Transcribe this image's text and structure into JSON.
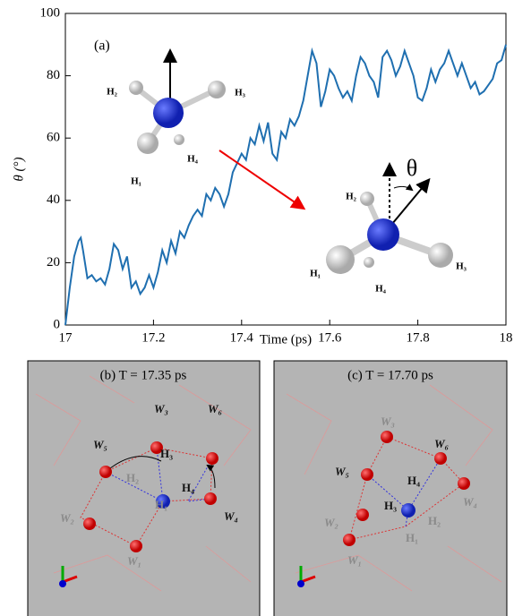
{
  "chart_data": {
    "type": "line",
    "x_label": "Time (ps)",
    "y_label": "θ (°)",
    "annotation": "(a)",
    "xlim": [
      17,
      18
    ],
    "ylim": [
      0,
      100
    ],
    "xticks": [
      17,
      17.2,
      17.4,
      17.6,
      17.8,
      18
    ],
    "yticks": [
      0,
      20,
      40,
      60,
      80,
      100
    ],
    "series": [
      {
        "name": "θ",
        "color": "#1f6fb0",
        "x": [
          17,
          17.01,
          17.02,
          17.03,
          17.035,
          17.04,
          17.05,
          17.06,
          17.07,
          17.08,
          17.09,
          17.1,
          17.11,
          17.12,
          17.13,
          17.14,
          17.15,
          17.16,
          17.17,
          17.18,
          17.19,
          17.2,
          17.21,
          17.22,
          17.23,
          17.24,
          17.25,
          17.26,
          17.27,
          17.28,
          17.29,
          17.3,
          17.31,
          17.32,
          17.33,
          17.34,
          17.35,
          17.36,
          17.37,
          17.38,
          17.39,
          17.4,
          17.41,
          17.42,
          17.43,
          17.44,
          17.45,
          17.46,
          17.47,
          17.48,
          17.49,
          17.5,
          17.51,
          17.52,
          17.53,
          17.54,
          17.55,
          17.56,
          17.57,
          17.58,
          17.59,
          17.6,
          17.61,
          17.62,
          17.63,
          17.64,
          17.65,
          17.66,
          17.67,
          17.68,
          17.69,
          17.7,
          17.71,
          17.72,
          17.73,
          17.74,
          17.75,
          17.76,
          17.77,
          17.78,
          17.79,
          17.8,
          17.81,
          17.82,
          17.83,
          17.84,
          17.85,
          17.86,
          17.87,
          17.88,
          17.89,
          17.9,
          17.91,
          17.92,
          17.93,
          17.94,
          17.95,
          17.96,
          17.97,
          17.98,
          17.99,
          18
        ],
        "values": [
          0,
          12,
          22,
          27,
          28,
          24,
          15,
          16,
          14,
          15,
          13,
          18,
          26,
          24,
          18,
          22,
          12,
          14,
          10,
          12,
          16,
          12,
          17,
          24,
          20,
          27,
          23,
          30,
          28,
          32,
          35,
          37,
          35,
          42,
          40,
          44,
          42,
          38,
          42,
          49,
          52,
          55,
          53,
          60,
          58,
          64,
          59,
          65,
          55,
          53,
          62,
          60,
          66,
          64,
          67,
          72,
          80,
          88,
          84,
          70,
          75,
          82,
          80,
          76,
          73,
          75,
          72,
          80,
          86,
          84,
          80,
          78,
          73,
          86,
          88,
          85,
          80,
          83,
          88,
          84,
          80,
          73,
          72,
          76,
          82,
          78,
          82,
          84,
          88,
          84,
          80,
          84,
          80,
          76,
          78,
          74,
          75,
          77,
          79,
          84,
          85,
          90
        ]
      }
    ],
    "grid": false
  },
  "inset_upper": {
    "labels": [
      "H₂",
      "H₃",
      "H₄",
      "H₁"
    ]
  },
  "inset_lower": {
    "labels": [
      "H₂",
      "H₁",
      "H₄",
      "H₃"
    ],
    "angle": "θ"
  },
  "panels": [
    {
      "title": "(b) T = 17.35 ps",
      "labels": [
        "W₅",
        "W₃",
        "W₆",
        "H₃",
        "H₂",
        "H₄",
        "W₄",
        "W₂",
        "H₁",
        "W₁"
      ]
    },
    {
      "title": "(c) T = 17.70 ps",
      "labels": [
        "W₃",
        "W₆",
        "W₅",
        "H₄",
        "H₃",
        "H₂",
        "W₄",
        "W₂",
        "H₁",
        "W₁"
      ]
    }
  ]
}
